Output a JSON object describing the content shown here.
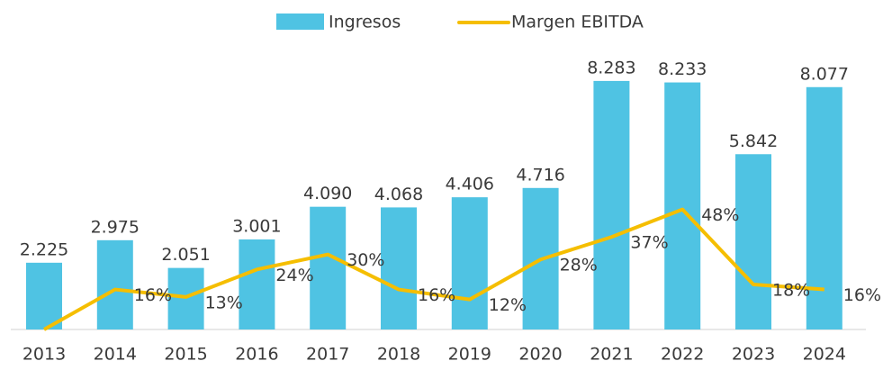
{
  "chart_data": {
    "type": "bar",
    "categories": [
      "2013",
      "2014",
      "2015",
      "2016",
      "2017",
      "2018",
      "2019",
      "2020",
      "2021",
      "2022",
      "2023",
      "2024"
    ],
    "series": [
      {
        "name": "Ingresos",
        "type": "bar",
        "color": "#4fc3e3",
        "values": [
          2225,
          2975,
          2051,
          3001,
          4090,
          4068,
          4406,
          4716,
          8283,
          8233,
          5842,
          8077
        ],
        "value_labels": [
          "2.225",
          "2.975",
          "2.051",
          "3.001",
          "4.090",
          "4.068",
          "4.406",
          "4.716",
          "8.283",
          "8.233",
          "5.842",
          "8.077"
        ]
      },
      {
        "name": "Margen EBITDA",
        "type": "line",
        "axis": "y2",
        "color": "#f5be00",
        "values": [
          0,
          16,
          13,
          24,
          30,
          16,
          12,
          28,
          37,
          48,
          18,
          16
        ],
        "value_labels": [
          null,
          "16%",
          "13%",
          "24%",
          "30%",
          "16%",
          "12%",
          "28%",
          "37%",
          "48%",
          "18%",
          "16%"
        ]
      }
    ],
    "ylim": [
      0,
      9000
    ],
    "y2lim": [
      0,
      108
    ],
    "legend": "top"
  }
}
